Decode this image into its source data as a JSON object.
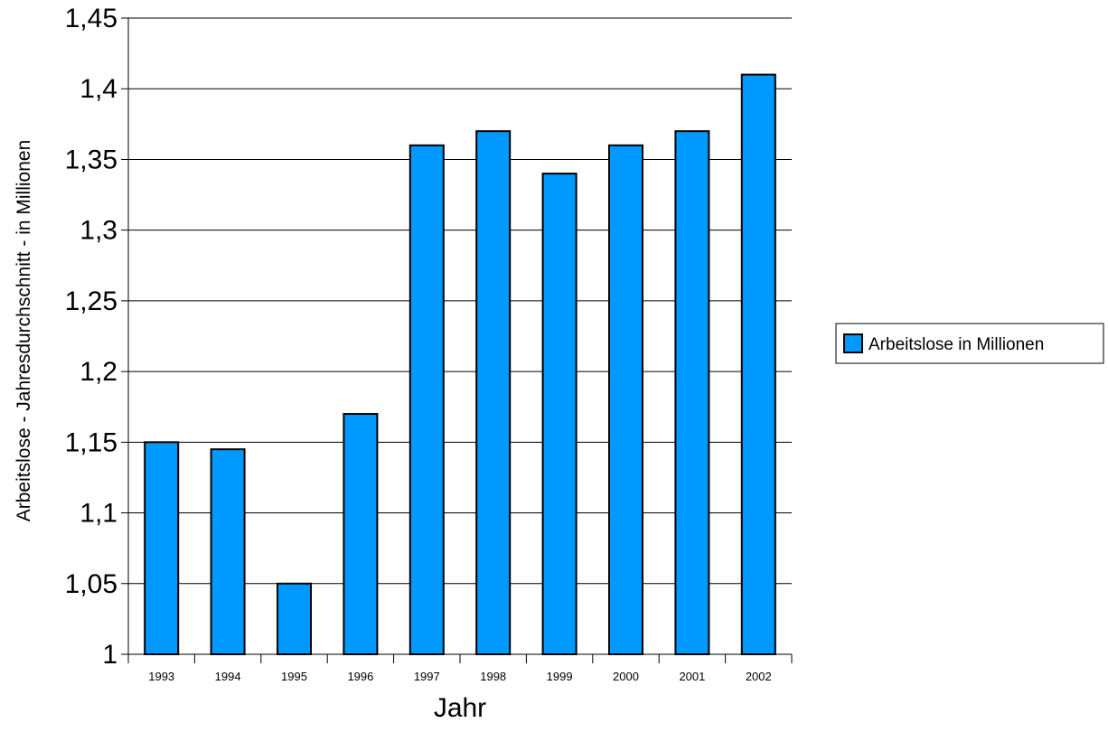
{
  "chart_data": {
    "type": "bar",
    "title": "",
    "xlabel": "Jahr",
    "ylabel": "Arbeitslose - Jahresdurchschnitt - in Millionen",
    "categories": [
      "1993",
      "1994",
      "1995",
      "1996",
      "1997",
      "1998",
      "1999",
      "2000",
      "2001",
      "2002"
    ],
    "series": [
      {
        "name": "Arbeitslose in Millionen",
        "color": "#0099ff",
        "values": [
          1.15,
          1.145,
          1.05,
          1.17,
          1.36,
          1.37,
          1.34,
          1.36,
          1.37,
          1.41
        ]
      }
    ],
    "ylim": [
      1,
      1.45
    ],
    "yticks": [
      "1",
      "1,05",
      "1,1",
      "1,15",
      "1,2",
      "1,25",
      "1,3",
      "1,35",
      "1,4",
      "1,45"
    ],
    "grid": true,
    "legend": "right"
  }
}
